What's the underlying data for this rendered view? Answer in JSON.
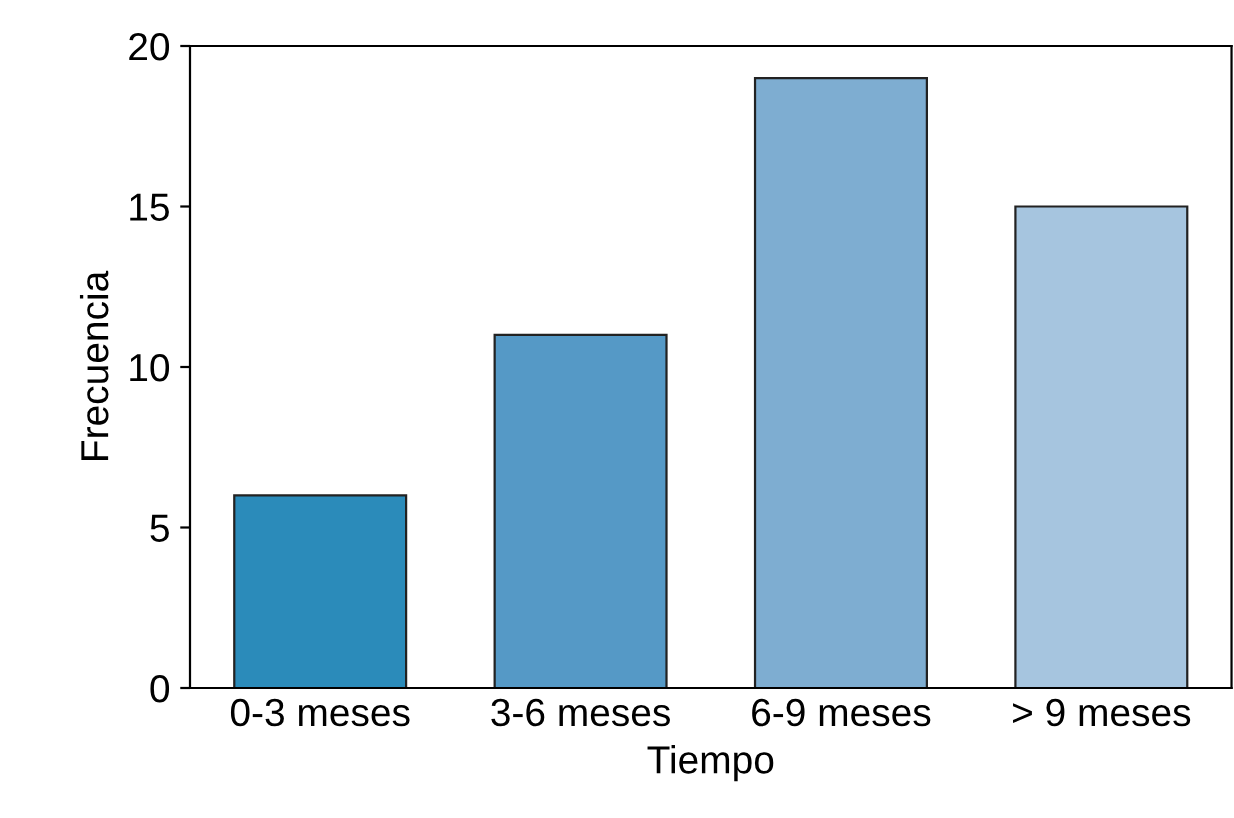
{
  "chart_data": {
    "type": "bar",
    "xlabel": "Tiempo",
    "ylabel": "Frecuencia",
    "categories": [
      "0-3 meses",
      "3-6 meses",
      "6-9 meses",
      "> 9 meses"
    ],
    "values": [
      6,
      11,
      19,
      15
    ],
    "colors": [
      "#2b8bba",
      "#5599c6",
      "#7eadd1",
      "#a6c5df"
    ],
    "ylim": [
      0,
      20
    ],
    "yticks": [
      0,
      5,
      10,
      15,
      20
    ],
    "grid": false,
    "legend": false
  }
}
